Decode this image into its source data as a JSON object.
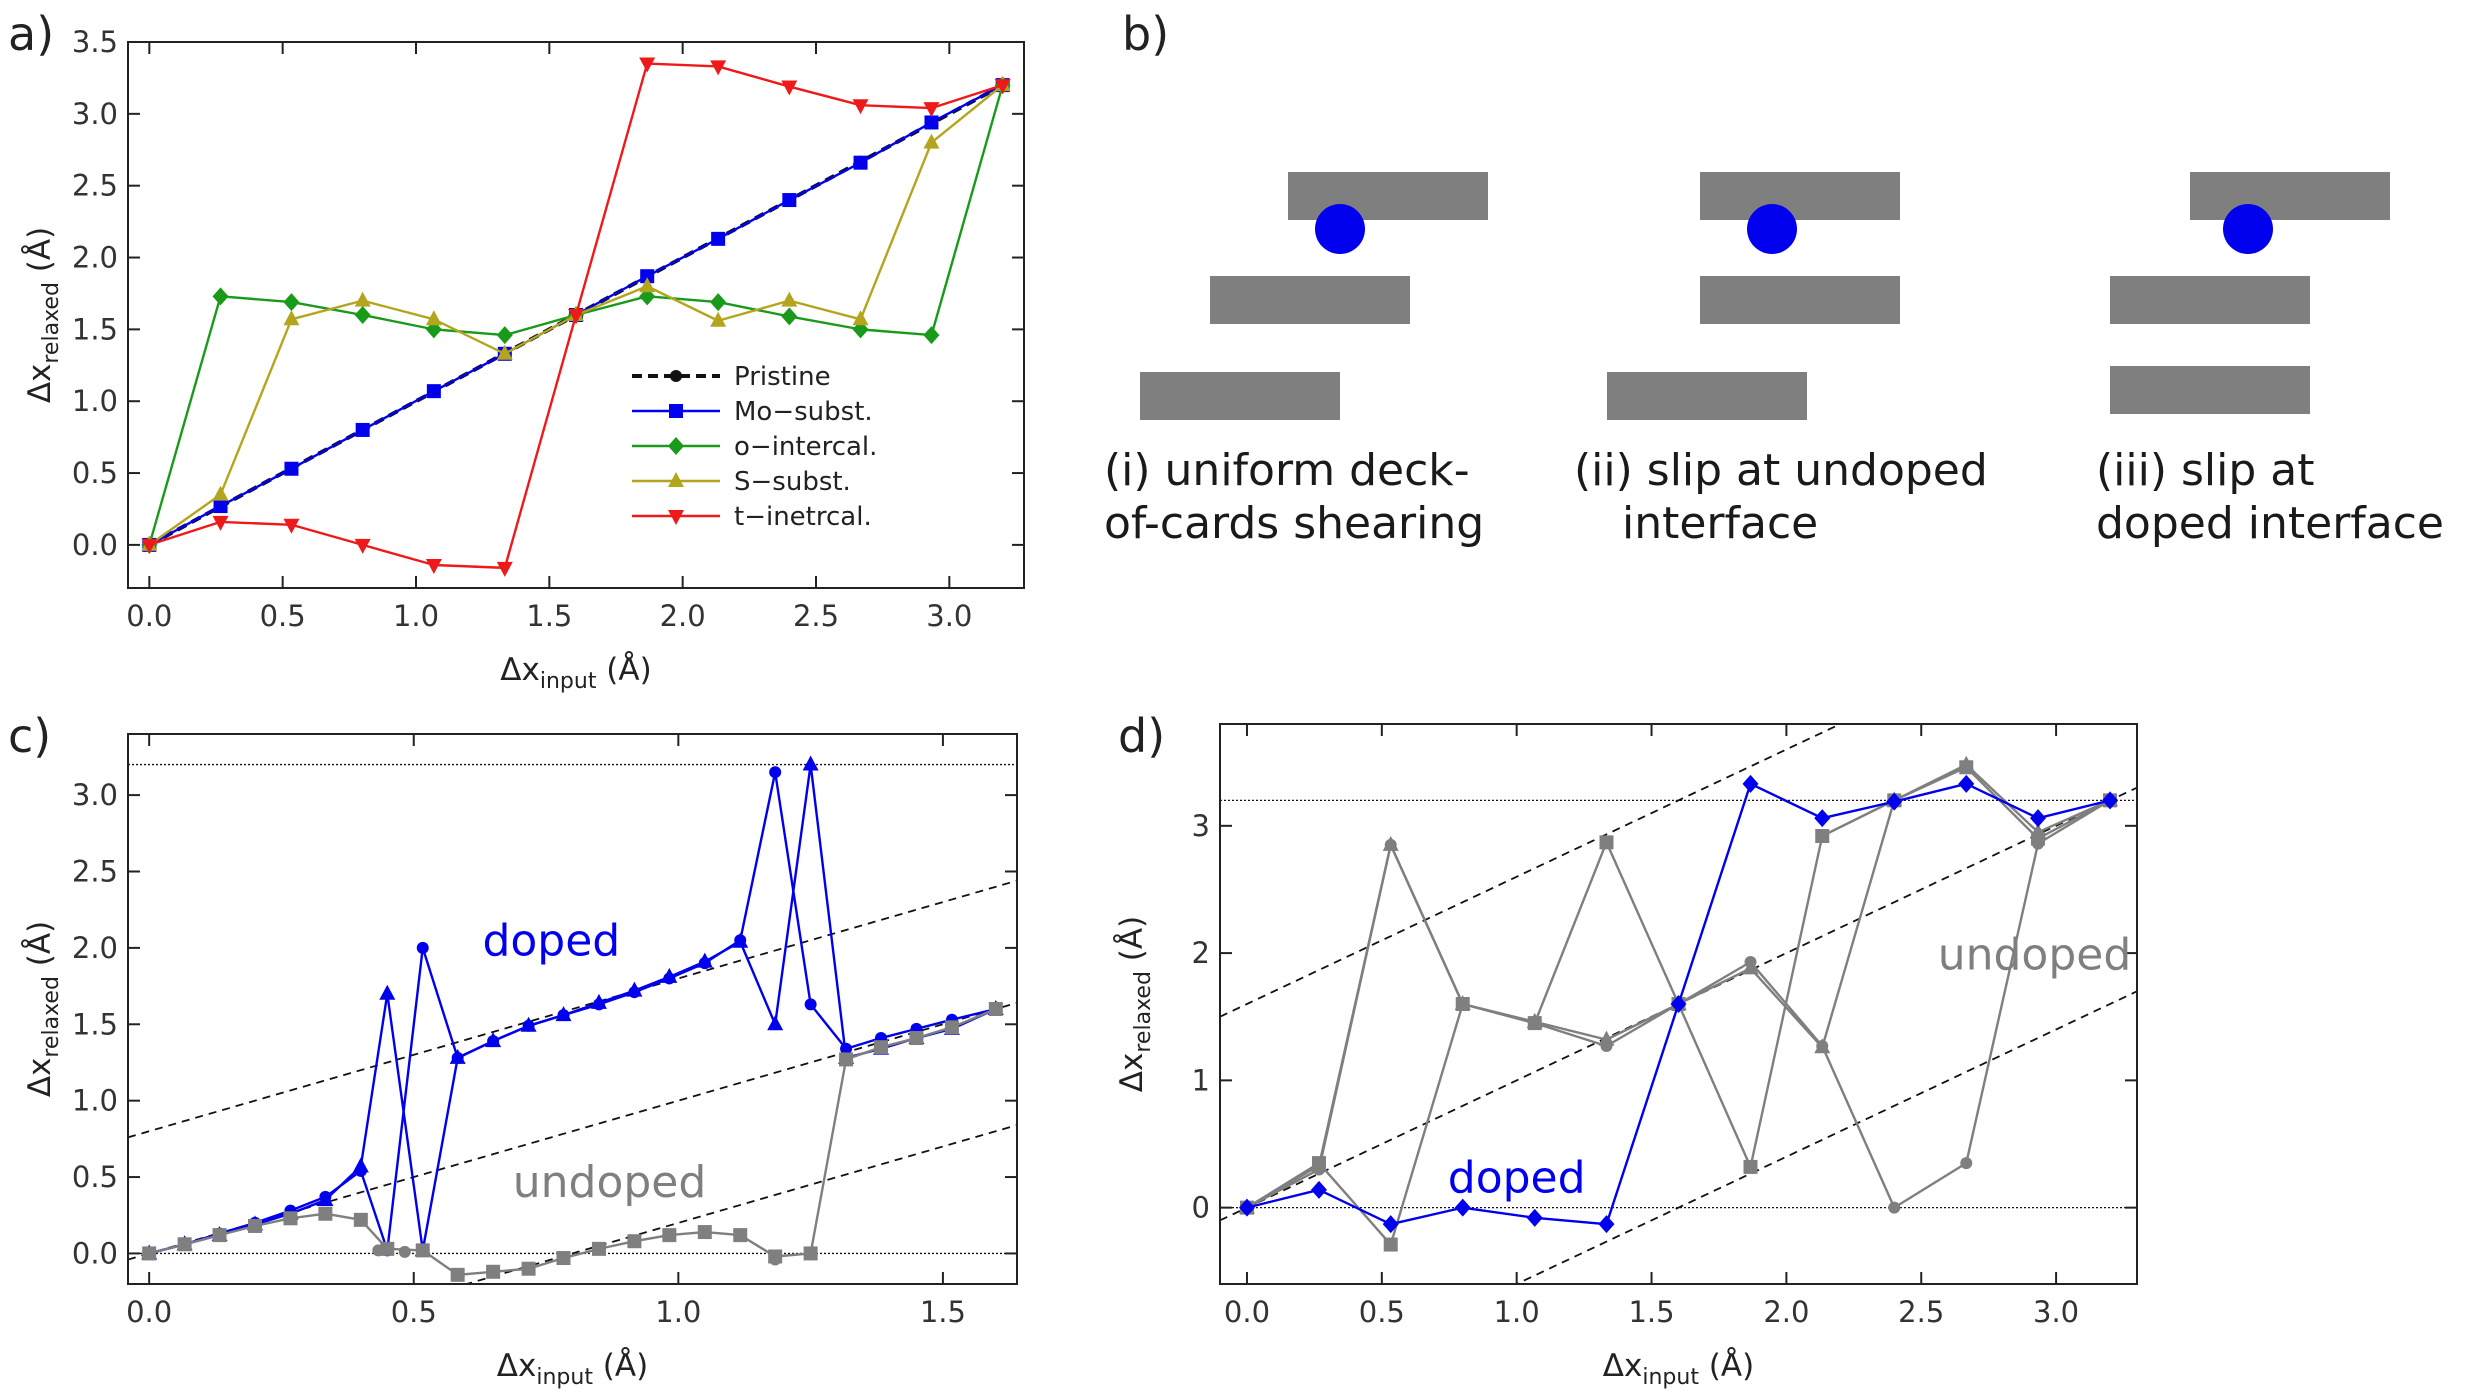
{
  "colors": {
    "blue": "#0000ee",
    "green": "#1a9a1a",
    "olive": "#b3a61e",
    "red": "#ee1a1a",
    "gray": "#7f7f7f",
    "black": "#111111",
    "slab": "#7f7f7f",
    "atom": "#0000ee"
  },
  "panel_labels": {
    "a": "a)",
    "b": "b)",
    "c": "c)",
    "d": "d)"
  },
  "schematic": {
    "captions": [
      {
        "lines": [
          "(i) uniform deck-",
          "of-cards shearing"
        ]
      },
      {
        "lines": [
          "(ii) slip at undoped",
          "interface"
        ]
      },
      {
        "lines": [
          "(iii) slip at",
          "doped interface"
        ]
      }
    ]
  },
  "chart_data": [
    {
      "id": "a",
      "type": "line",
      "xlabel_main": "Δx",
      "xlabel_sub": "input",
      "xlabel_unit": " (Å)",
      "ylabel_main": "Δx",
      "ylabel_sub": "relaxed",
      "ylabel_unit": " (Å)",
      "xlim": [
        -0.08,
        3.28
      ],
      "ylim": [
        -0.3,
        3.5
      ],
      "xticks": [
        0.0,
        0.5,
        1.0,
        1.5,
        2.0,
        2.5,
        3.0
      ],
      "xtick_labels": [
        "0.0",
        "0.5",
        "1.0",
        "1.5",
        "2.0",
        "2.5",
        "3.0"
      ],
      "yticks": [
        0.0,
        0.5,
        1.0,
        1.5,
        2.0,
        2.5,
        3.0,
        3.5
      ],
      "ytick_labels": [
        "0.0",
        "0.5",
        "1.0",
        "1.5",
        "2.0",
        "2.5",
        "3.0",
        "3.5"
      ],
      "legend_position": "lower-right",
      "series": [
        {
          "name": "Pristine",
          "color": "black",
          "marker": "circle",
          "dash": true,
          "x": [
            0,
            0.267,
            0.533,
            0.8,
            1.067,
            1.333,
            1.6,
            1.867,
            2.133,
            2.4,
            2.667,
            2.933,
            3.2
          ],
          "y": [
            0,
            0.267,
            0.533,
            0.8,
            1.067,
            1.333,
            1.6,
            1.867,
            2.133,
            2.4,
            2.667,
            2.933,
            3.2
          ]
        },
        {
          "name": "Mo−subst.",
          "color": "blue",
          "marker": "square",
          "x": [
            0,
            0.267,
            0.533,
            0.8,
            1.067,
            1.333,
            1.6,
            1.867,
            2.133,
            2.4,
            2.667,
            2.933,
            3.2
          ],
          "y": [
            0,
            0.27,
            0.53,
            0.8,
            1.07,
            1.33,
            1.6,
            1.87,
            2.13,
            2.4,
            2.66,
            2.94,
            3.2
          ]
        },
        {
          "name": "o−intercal.",
          "color": "green",
          "marker": "diamond",
          "x": [
            0,
            0.267,
            0.533,
            0.8,
            1.067,
            1.333,
            1.6,
            1.867,
            2.133,
            2.4,
            2.667,
            2.933,
            3.2
          ],
          "y": [
            0,
            1.73,
            1.69,
            1.6,
            1.5,
            1.46,
            1.6,
            1.73,
            1.69,
            1.59,
            1.5,
            1.46,
            3.2
          ]
        },
        {
          "name": "S−subst.",
          "color": "olive",
          "marker": "triangle-up",
          "x": [
            0,
            0.267,
            0.533,
            0.8,
            1.067,
            1.333,
            1.6,
            1.867,
            2.133,
            2.4,
            2.667,
            2.933,
            3.2
          ],
          "y": [
            0,
            0.35,
            1.57,
            1.7,
            1.57,
            1.33,
            1.6,
            1.8,
            1.56,
            1.7,
            1.57,
            2.8,
            3.2
          ]
        },
        {
          "name": "t−inetrcal.",
          "color": "red",
          "marker": "triangle-down",
          "x": [
            0,
            0.267,
            0.533,
            0.8,
            1.067,
            1.333,
            1.6,
            1.867,
            2.133,
            2.4,
            2.667,
            2.933,
            3.2
          ],
          "y": [
            0,
            0.16,
            0.14,
            0.0,
            -0.14,
            -0.16,
            1.6,
            3.35,
            3.33,
            3.19,
            3.06,
            3.04,
            3.2
          ]
        }
      ]
    },
    {
      "id": "c",
      "type": "line",
      "xlabel_main": "Δx",
      "xlabel_sub": "input",
      "xlabel_unit": " (Å)",
      "ylabel_main": "Δx",
      "ylabel_sub": "relaxed",
      "ylabel_unit": " (Å)",
      "xlim": [
        -0.04,
        1.64
      ],
      "ylim": [
        -0.2,
        3.4
      ],
      "xticks": [
        0.0,
        0.5,
        1.0,
        1.5
      ],
      "xtick_labels": [
        "0.0",
        "0.5",
        "1.0",
        "1.5"
      ],
      "yticks": [
        0.0,
        0.5,
        1.0,
        1.5,
        2.0,
        2.5,
        3.0
      ],
      "ytick_labels": [
        "0.0",
        "0.5",
        "1.0",
        "1.5",
        "2.0",
        "2.5",
        "3.0"
      ],
      "hlines": [
        0,
        3.2
      ],
      "diagonals": [
        {
          "offset": 0.8
        },
        {
          "offset": 0
        },
        {
          "offset": -0.8
        }
      ],
      "annotations": [
        {
          "text": "doped",
          "x": 0.76,
          "y": 1.95,
          "color": "blue"
        },
        {
          "text": "undoped",
          "x": 0.87,
          "y": 0.37,
          "color": "gray"
        }
      ],
      "series": [
        {
          "name": "doped-circle",
          "color": "blue",
          "marker": "circle",
          "x": [
            0,
            0.067,
            0.133,
            0.2,
            0.267,
            0.333,
            0.4,
            0.45,
            0.517,
            0.583,
            0.65,
            0.717,
            0.783,
            0.85,
            0.917,
            0.983,
            1.05,
            1.117,
            1.183,
            1.25,
            1.317,
            1.383,
            1.45,
            1.517,
            1.6
          ],
          "y": [
            0,
            0.06,
            0.13,
            0.2,
            0.28,
            0.37,
            0.54,
            0.02,
            2.0,
            1.28,
            1.39,
            1.49,
            1.56,
            1.63,
            1.71,
            1.8,
            1.9,
            2.05,
            3.15,
            1.63,
            1.34,
            1.41,
            1.47,
            1.53,
            1.6
          ]
        },
        {
          "name": "doped-triangle",
          "color": "blue",
          "marker": "triangle-up",
          "x": [
            0,
            0.067,
            0.133,
            0.2,
            0.267,
            0.333,
            0.4,
            0.45,
            0.517,
            0.583,
            0.65,
            0.717,
            0.783,
            0.85,
            0.917,
            0.983,
            1.05,
            1.117,
            1.183,
            1.25,
            1.317,
            1.383,
            1.45,
            1.517,
            1.6
          ],
          "y": [
            0,
            0.06,
            0.12,
            0.19,
            0.26,
            0.35,
            0.57,
            1.7,
            0.02,
            1.28,
            1.39,
            1.49,
            1.56,
            1.64,
            1.72,
            1.81,
            1.91,
            2.04,
            1.5,
            3.2,
            1.28,
            1.34,
            1.41,
            1.47,
            1.6
          ]
        },
        {
          "name": "undoped-square",
          "color": "gray",
          "marker": "square",
          "x": [
            0,
            0.067,
            0.133,
            0.2,
            0.267,
            0.333,
            0.4,
            0.45,
            0.517,
            0.583,
            0.65,
            0.717,
            0.783,
            0.85,
            0.917,
            0.983,
            1.05,
            1.117,
            1.183,
            1.25,
            1.317,
            1.383,
            1.45,
            1.517,
            1.6
          ],
          "y": [
            0,
            0.06,
            0.12,
            0.18,
            0.23,
            0.26,
            0.22,
            0.03,
            0.02,
            -0.14,
            -0.12,
            -0.1,
            -0.03,
            0.03,
            0.08,
            0.12,
            0.14,
            0.12,
            -0.02,
            0.0,
            1.27,
            1.35,
            1.41,
            1.48,
            1.6
          ]
        },
        {
          "name": "undoped-circle",
          "color": "gray",
          "marker": "circle",
          "x": [
            0.433,
            0.483,
            1.183
          ],
          "y": [
            0.02,
            0.01,
            -0.04
          ]
        }
      ]
    },
    {
      "id": "d",
      "type": "line",
      "xlabel_main": "Δx",
      "xlabel_sub": "input",
      "xlabel_unit": " (Å)",
      "ylabel_main": "Δx",
      "ylabel_sub": "relaxed",
      "ylabel_unit": " (Å)",
      "xlim": [
        -0.1,
        3.3
      ],
      "ylim": [
        -0.6,
        3.8
      ],
      "xticks": [
        0.0,
        0.5,
        1.0,
        1.5,
        2.0,
        2.5,
        3.0
      ],
      "xtick_labels": [
        "0.0",
        "0.5",
        "1.0",
        "1.5",
        "2.0",
        "2.5",
        "3.0"
      ],
      "yticks": [
        0,
        1,
        2,
        3
      ],
      "ytick_labels": [
        "0",
        "1",
        "2",
        "3"
      ],
      "hlines": [
        0,
        3.2
      ],
      "diagonals": [
        {
          "offset": 1.6
        },
        {
          "offset": 0
        },
        {
          "offset": -1.6
        }
      ],
      "annotations": [
        {
          "text": "doped",
          "x": 1.0,
          "y": 0.12,
          "color": "blue"
        },
        {
          "text": "undoped",
          "x": 2.92,
          "y": 1.87,
          "color": "gray"
        }
      ],
      "series": [
        {
          "name": "undoped-a",
          "color": "gray",
          "marker": "circle",
          "x": [
            0,
            0.267,
            0.533,
            0.8,
            1.067,
            1.333,
            1.6,
            1.867,
            2.133,
            2.4,
            2.667,
            2.933,
            3.2
          ],
          "y": [
            0,
            0.3,
            2.85,
            1.6,
            1.45,
            1.27,
            1.6,
            1.93,
            1.27,
            0.0,
            0.35,
            2.86,
            3.2
          ]
        },
        {
          "name": "undoped-b",
          "color": "gray",
          "marker": "square",
          "x": [
            0,
            0.267,
            0.533,
            0.8,
            1.067,
            1.333,
            1.6,
            1.867,
            2.133,
            2.4,
            2.667,
            2.933,
            3.2
          ],
          "y": [
            0,
            0.35,
            -0.29,
            1.6,
            1.45,
            2.87,
            1.6,
            0.32,
            2.92,
            3.2,
            3.46,
            2.9,
            3.2
          ]
        },
        {
          "name": "undoped-c",
          "color": "gray",
          "marker": "triangle-up",
          "x": [
            0,
            0.267,
            0.533,
            0.8,
            1.067,
            1.333,
            1.6,
            1.867,
            2.133,
            2.4,
            2.667,
            2.933,
            3.2
          ],
          "y": [
            0,
            0.33,
            2.85,
            1.6,
            1.46,
            1.32,
            1.6,
            1.88,
            1.26,
            3.2,
            3.48,
            2.95,
            3.2
          ]
        },
        {
          "name": "doped",
          "color": "blue",
          "marker": "diamond",
          "x": [
            0,
            0.267,
            0.533,
            0.8,
            1.067,
            1.333,
            1.6,
            1.867,
            2.133,
            2.4,
            2.667,
            2.933,
            3.2
          ],
          "y": [
            0,
            0.14,
            -0.13,
            0.0,
            -0.08,
            -0.13,
            1.6,
            3.33,
            3.06,
            3.19,
            3.33,
            3.06,
            3.2
          ]
        }
      ]
    }
  ]
}
